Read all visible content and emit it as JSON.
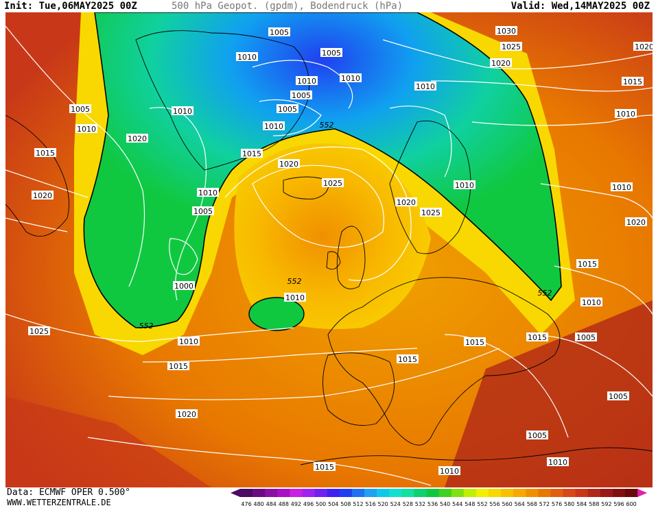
{
  "header": {
    "init": "Init: Tue,06MAY2025 00Z",
    "title": "500 hPa Geopot. (gpdm), Bodendruck (hPa)",
    "valid": "Valid: Wed,14MAY2025 00Z"
  },
  "footer": {
    "data_source": "Data: ECMWF OPER 0.500°",
    "website": "WWW.WETTERZENTRALE.DE"
  },
  "legend": {
    "values": [
      "476",
      "480",
      "484",
      "488",
      "492",
      "496",
      "500",
      "504",
      "508",
      "512",
      "516",
      "520",
      "524",
      "528",
      "532",
      "536",
      "540",
      "544",
      "548",
      "552",
      "556",
      "560",
      "564",
      "568",
      "572",
      "576",
      "580",
      "584",
      "588",
      "592",
      "596",
      "600"
    ],
    "colors": [
      "#4b0a63",
      "#6a0a83",
      "#8a10a3",
      "#aa10c3",
      "#c820e0",
      "#a020f0",
      "#7020f0",
      "#4020f0",
      "#2040f0",
      "#2070f0",
      "#20a0f0",
      "#10c8e8",
      "#10e0d0",
      "#10e0a0",
      "#10d070",
      "#10c840",
      "#40d020",
      "#80e010",
      "#c0f000",
      "#f0f000",
      "#f8d800",
      "#f8c000",
      "#f8a800",
      "#f09000",
      "#e87800",
      "#e06010",
      "#d84818",
      "#c83818",
      "#b02818",
      "#981818",
      "#801010",
      "#680808"
    ],
    "arrow_left_color": "#4b0a63",
    "arrow_right_color": "#e020b0"
  },
  "map": {
    "ocean_color": "#e06010",
    "contour_color": "#ffffff",
    "coast_color": "#000000",
    "isobar_labels": [
      "1005",
      "1010",
      "1005",
      "1010",
      "1010",
      "1010",
      "1005",
      "1005",
      "1010",
      "1015",
      "1020",
      "1025",
      "1030",
      "1025",
      "1020",
      "1020",
      "1010",
      "1015",
      "1010",
      "1010",
      "1005",
      "1010",
      "1020",
      "1015",
      "1020",
      "1010",
      "1005",
      "1000",
      "1020",
      "1025",
      "1020",
      "1015",
      "1010",
      "1010",
      "1010",
      "1005",
      "1025",
      "1010",
      "1015",
      "1015",
      "1015",
      "1015",
      "1005",
      "1020",
      "1005",
      "1015",
      "1010",
      "1010"
    ],
    "height_labels": [
      "552",
      "552",
      "552",
      "552"
    ]
  }
}
